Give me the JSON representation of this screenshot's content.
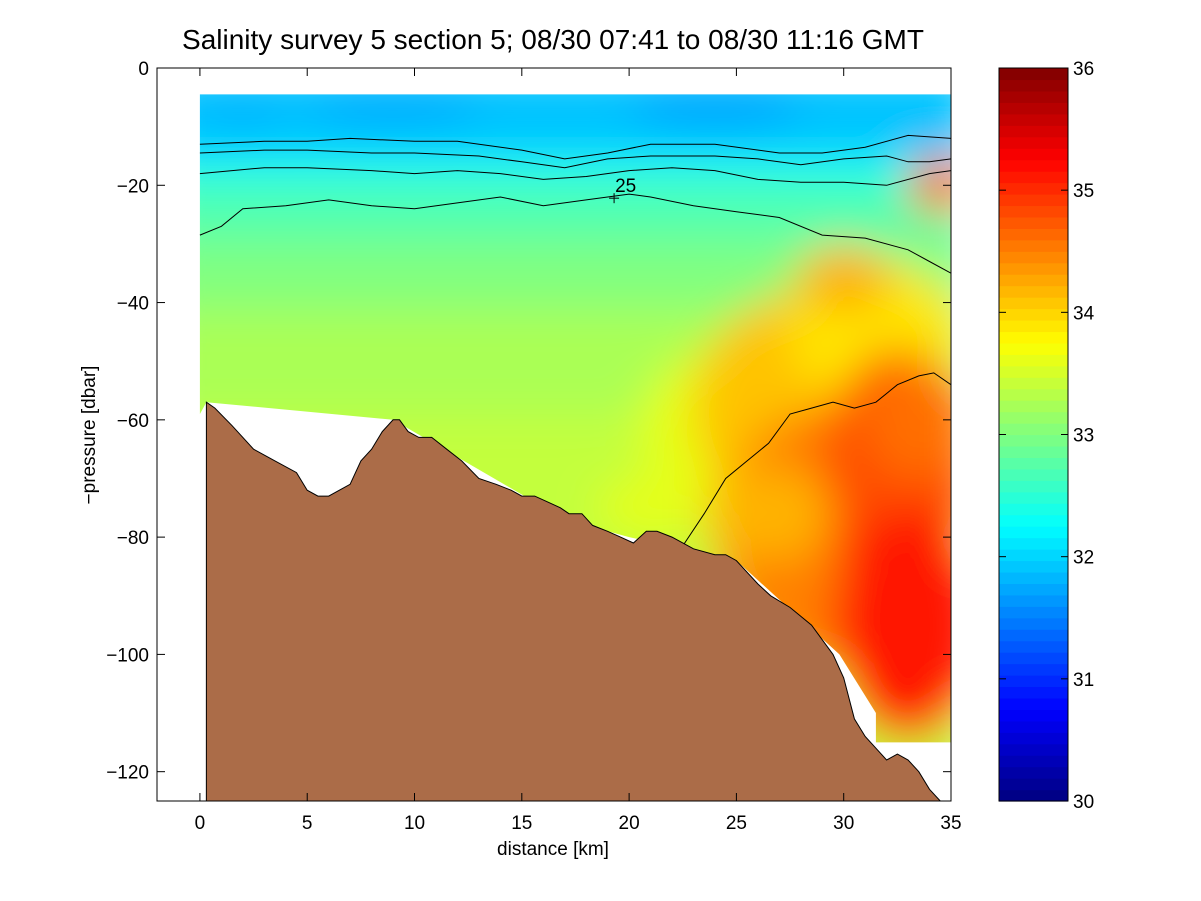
{
  "chart_data": {
    "type": "heatmap",
    "title": "Salinity survey 5 section 5; 08/30 07:41 to 08/30 11:16 GMT",
    "xlabel": "distance [km]",
    "ylabel": "−pressure [dbar]",
    "xlim": [
      -2,
      35
    ],
    "ylim": [
      -125,
      0
    ],
    "xticks": [
      0,
      5,
      10,
      15,
      20,
      25,
      30,
      35
    ],
    "yticks": [
      0,
      -20,
      -40,
      -60,
      -80,
      -100,
      -120
    ],
    "colorbar": {
      "colormap": "jet",
      "range": [
        30,
        36
      ],
      "ticks": [
        30,
        31,
        32,
        33,
        34,
        35,
        36
      ]
    },
    "contour_label": "25",
    "bottom_fill_color": "#ab6c48",
    "bathymetry": [
      [
        0.3,
        -57
      ],
      [
        0.7,
        -58
      ],
      [
        1.5,
        -61
      ],
      [
        2.5,
        -65
      ],
      [
        3.5,
        -67
      ],
      [
        4.5,
        -69
      ],
      [
        5.0,
        -72
      ],
      [
        5.5,
        -73
      ],
      [
        6.0,
        -73
      ],
      [
        6.5,
        -72
      ],
      [
        7.0,
        -71
      ],
      [
        7.5,
        -67
      ],
      [
        8.0,
        -65
      ],
      [
        8.5,
        -62
      ],
      [
        9.0,
        -60
      ],
      [
        9.3,
        -60
      ],
      [
        9.7,
        -62
      ],
      [
        10.2,
        -63
      ],
      [
        10.8,
        -63
      ],
      [
        11.5,
        -65
      ],
      [
        12.2,
        -67
      ],
      [
        13.0,
        -70
      ],
      [
        13.8,
        -71
      ],
      [
        14.5,
        -72
      ],
      [
        15.0,
        -73
      ],
      [
        15.6,
        -73
      ],
      [
        16.2,
        -74
      ],
      [
        16.8,
        -75
      ],
      [
        17.2,
        -76
      ],
      [
        17.8,
        -76
      ],
      [
        18.3,
        -78
      ],
      [
        19.0,
        -79
      ],
      [
        19.6,
        -80
      ],
      [
        20.2,
        -81
      ],
      [
        20.8,
        -79
      ],
      [
        21.3,
        -79
      ],
      [
        22.0,
        -80
      ],
      [
        23.0,
        -82
      ],
      [
        24.0,
        -83
      ],
      [
        24.5,
        -83
      ],
      [
        25.0,
        -84
      ],
      [
        26.0,
        -88
      ],
      [
        26.6,
        -90
      ],
      [
        27.5,
        -92
      ],
      [
        28.5,
        -95
      ],
      [
        29.5,
        -100
      ],
      [
        30.0,
        -104
      ],
      [
        30.5,
        -111
      ],
      [
        31.0,
        -114
      ],
      [
        31.5,
        -116
      ],
      [
        32.0,
        -118
      ],
      [
        32.5,
        -117
      ],
      [
        33.0,
        -118
      ],
      [
        33.5,
        -120
      ],
      [
        34.0,
        -123
      ],
      [
        34.5,
        -125
      ]
    ],
    "contours": [
      [
        [
          0,
          -13
        ],
        [
          3,
          -12.5
        ],
        [
          5,
          -12.5
        ],
        [
          7,
          -12
        ],
        [
          10,
          -12.5
        ],
        [
          12,
          -12.5
        ],
        [
          15,
          -14
        ],
        [
          17,
          -15.5
        ],
        [
          19,
          -14.5
        ],
        [
          21,
          -13
        ],
        [
          24,
          -13
        ],
        [
          27,
          -14.5
        ],
        [
          29,
          -14.5
        ],
        [
          31,
          -13.5
        ],
        [
          33,
          -11.5
        ],
        [
          35,
          -12
        ]
      ],
      [
        [
          0,
          -14.5
        ],
        [
          3,
          -14
        ],
        [
          5,
          -14
        ],
        [
          8,
          -14.5
        ],
        [
          10,
          -14.5
        ],
        [
          13,
          -15
        ],
        [
          15,
          -16
        ],
        [
          17,
          -17
        ],
        [
          19,
          -15.5
        ],
        [
          21,
          -15
        ],
        [
          24,
          -15
        ],
        [
          26,
          -15.5
        ],
        [
          28,
          -16.5
        ],
        [
          30,
          -15.5
        ],
        [
          32,
          -15
        ],
        [
          33,
          -16
        ],
        [
          34,
          -16
        ],
        [
          35,
          -15.5
        ]
      ],
      [
        [
          0,
          -18
        ],
        [
          3,
          -17
        ],
        [
          5,
          -17
        ],
        [
          8,
          -17.5
        ],
        [
          10,
          -18
        ],
        [
          12,
          -17.5
        ],
        [
          14,
          -18
        ],
        [
          16,
          -19
        ],
        [
          18,
          -18.5
        ],
        [
          20,
          -17.5
        ],
        [
          22,
          -17
        ],
        [
          24,
          -17.5
        ],
        [
          26,
          -19
        ],
        [
          28,
          -19.5
        ],
        [
          30,
          -19.5
        ],
        [
          32,
          -20
        ],
        [
          34,
          -18
        ],
        [
          35,
          -17.5
        ]
      ],
      [
        [
          0,
          -28.5
        ],
        [
          1,
          -27
        ],
        [
          2,
          -24
        ],
        [
          4,
          -23.5
        ],
        [
          6,
          -22.5
        ],
        [
          8,
          -23.5
        ],
        [
          10,
          -24
        ],
        [
          12,
          -23
        ],
        [
          14,
          -22
        ],
        [
          16,
          -23.5
        ],
        [
          18,
          -22.5
        ],
        [
          19,
          -22
        ],
        [
          20,
          -21.5
        ],
        [
          21,
          -22
        ],
        [
          23,
          -23.5
        ],
        [
          25,
          -24.5
        ],
        [
          27,
          -25.5
        ],
        [
          29,
          -28.5
        ],
        [
          31,
          -29
        ],
        [
          33,
          -31
        ],
        [
          34,
          -33
        ],
        [
          35,
          -35
        ]
      ],
      [
        [
          22.5,
          -81.5
        ],
        [
          23.5,
          -76
        ],
        [
          24.5,
          -70
        ],
        [
          25.5,
          -67
        ],
        [
          26.5,
          -64
        ],
        [
          27.5,
          -59
        ],
        [
          28.5,
          -58
        ],
        [
          29.5,
          -57
        ],
        [
          30.5,
          -58
        ],
        [
          31.5,
          -57
        ],
        [
          32.5,
          -54
        ],
        [
          33.5,
          -52.5
        ],
        [
          34.2,
          -52
        ],
        [
          35,
          -54
        ]
      ]
    ]
  }
}
